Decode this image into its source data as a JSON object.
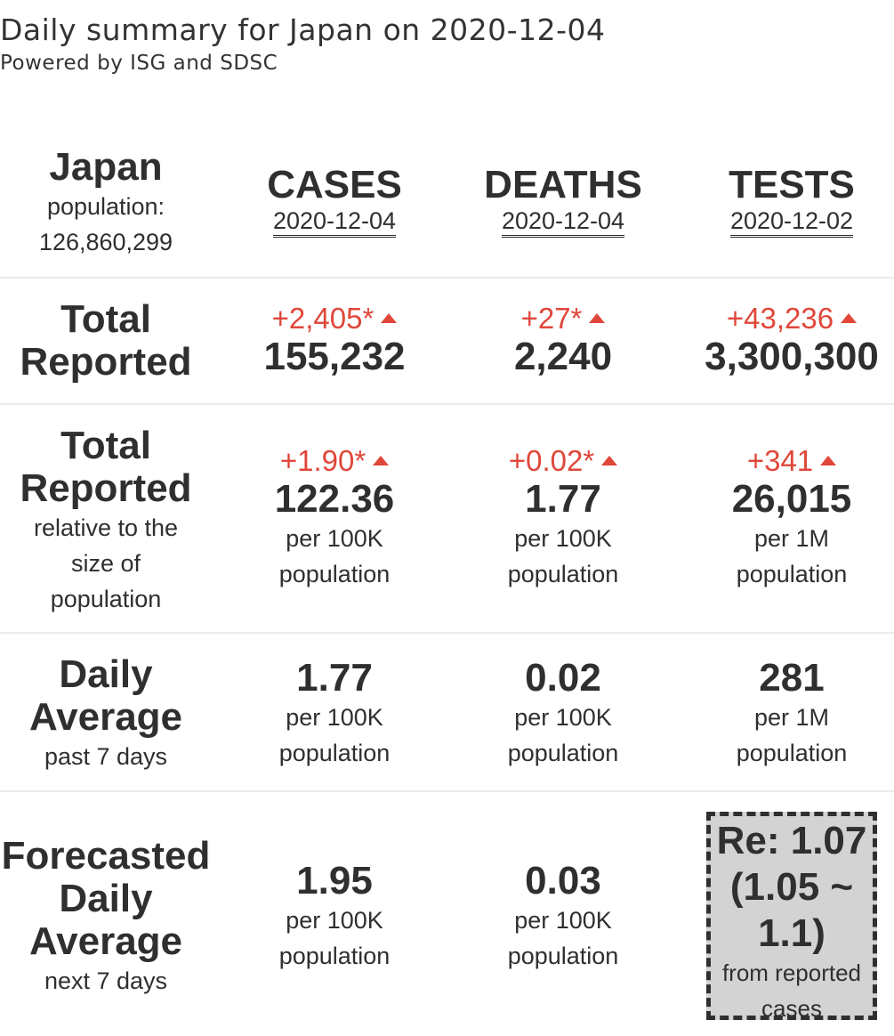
{
  "header": {
    "title": "Daily summary for Japan on 2020-12-04",
    "subtitle": "Powered by ISG and SDSC"
  },
  "location": {
    "name": "Japan",
    "population_label": "population:",
    "population": "126,860,299"
  },
  "columns": [
    {
      "name": "CASES",
      "date": "2020-12-04"
    },
    {
      "name": "DEATHS",
      "date": "2020-12-04"
    },
    {
      "name": "TESTS",
      "date": "2020-12-02"
    }
  ],
  "total_reported": {
    "label_line1": "Total",
    "label_line2": "Reported",
    "cases": {
      "delta": "+2,405*",
      "value": "155,232"
    },
    "deaths": {
      "delta": "+27*",
      "value": "2,240"
    },
    "tests": {
      "delta": "+43,236",
      "value": "3,300,300"
    }
  },
  "relative": {
    "label_line1": "Total",
    "label_line2": "Reported",
    "label_sub1": "relative to the",
    "label_sub2": "size of",
    "label_sub3": "population",
    "cases": {
      "delta": "+1.90*",
      "value": "122.36",
      "unit1": "per 100K",
      "unit2": "population"
    },
    "deaths": {
      "delta": "+0.02*",
      "value": "1.77",
      "unit1": "per 100K",
      "unit2": "population"
    },
    "tests": {
      "delta": "+341",
      "value": "26,015",
      "unit1": "per 1M",
      "unit2": "population"
    }
  },
  "daily_average": {
    "label_line1": "Daily",
    "label_line2": "Average",
    "label_sub": "past 7 days",
    "cases": {
      "value": "1.77",
      "unit1": "per 100K",
      "unit2": "population"
    },
    "deaths": {
      "value": "0.02",
      "unit1": "per 100K",
      "unit2": "population"
    },
    "tests": {
      "value": "281",
      "unit1": "per 1M",
      "unit2": "population"
    }
  },
  "forecast": {
    "label_line1": "Forecasted",
    "label_line2": "Daily",
    "label_line3": "Average",
    "label_sub": "next 7 days",
    "cases": {
      "value": "1.95",
      "unit1": "per 100K",
      "unit2": "population"
    },
    "deaths": {
      "value": "0.03",
      "unit1": "per 100K",
      "unit2": "population"
    },
    "re": {
      "line1": "Re: 1.07",
      "line2": "(1.05 ~",
      "line3": "1.1)",
      "sub1": "from reported",
      "sub2": "cases"
    }
  },
  "colors": {
    "delta": "#e0473a",
    "text": "#2f2f2f",
    "re_box": "#d3d3d3"
  }
}
